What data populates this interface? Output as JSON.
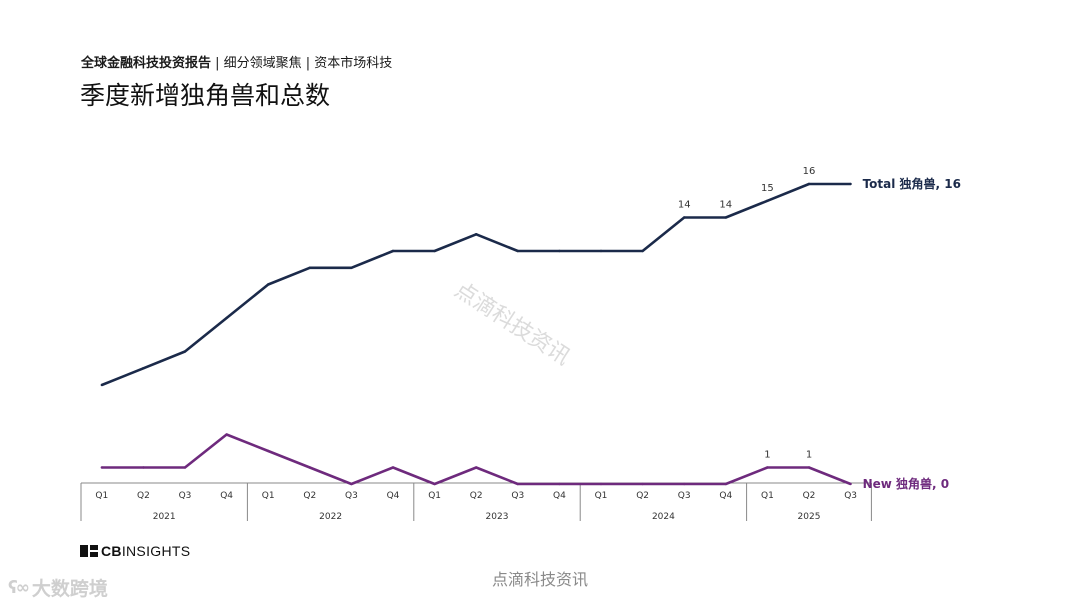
{
  "header": {
    "subtitle_bold": "全球金融科技投资报告",
    "subtitle_rest": " | 细分领域聚焦 | 资本市场科技",
    "title": "季度新增独角兽和总数"
  },
  "chart_data": {
    "type": "line",
    "categories": [
      "Q1",
      "Q2",
      "Q3",
      "Q4",
      "Q1",
      "Q2",
      "Q3",
      "Q4",
      "Q1",
      "Q2",
      "Q3",
      "Q4",
      "Q1",
      "Q2",
      "Q3",
      "Q4",
      "Q1",
      "Q2",
      "Q3"
    ],
    "years": [
      {
        "label": "2021",
        "count": 4
      },
      {
        "label": "2022",
        "count": 4
      },
      {
        "label": "2023",
        "count": 4
      },
      {
        "label": "2024",
        "count": 4
      },
      {
        "label": "2025",
        "count": 3
      }
    ],
    "series": [
      {
        "name": "Total 独角兽",
        "end_label": "Total 独角兽, 16",
        "color": "#1b2a4a",
        "values": [
          4,
          5,
          6,
          8,
          10,
          11,
          11,
          12,
          12,
          13,
          12,
          12,
          12,
          12,
          14,
          14,
          15,
          16,
          16
        ],
        "point_labels": {
          "14": "14",
          "15": "14",
          "16": "15",
          "17": "16"
        }
      },
      {
        "name": "New 独角兽",
        "end_label": "New 独角兽, 0",
        "color": "#6e2a7d",
        "values": [
          1,
          1,
          1,
          3,
          2,
          1,
          0,
          1,
          0,
          1,
          0,
          0,
          0,
          0,
          0,
          0,
          1,
          1,
          0
        ],
        "point_labels": {
          "16": "1",
          "17": "1"
        }
      }
    ],
    "title": "季度新增独角兽和总数",
    "xlabel": "",
    "ylabel": "",
    "grid": false,
    "legend": "end-of-line labels"
  },
  "branding": {
    "logo_bold": "CB",
    "logo_rest": "INSIGHTS",
    "bottom_watermark": "点滴科技资讯",
    "diagonal_watermark": "点滴科技资讯",
    "corner_watermark": "大数跨境"
  }
}
